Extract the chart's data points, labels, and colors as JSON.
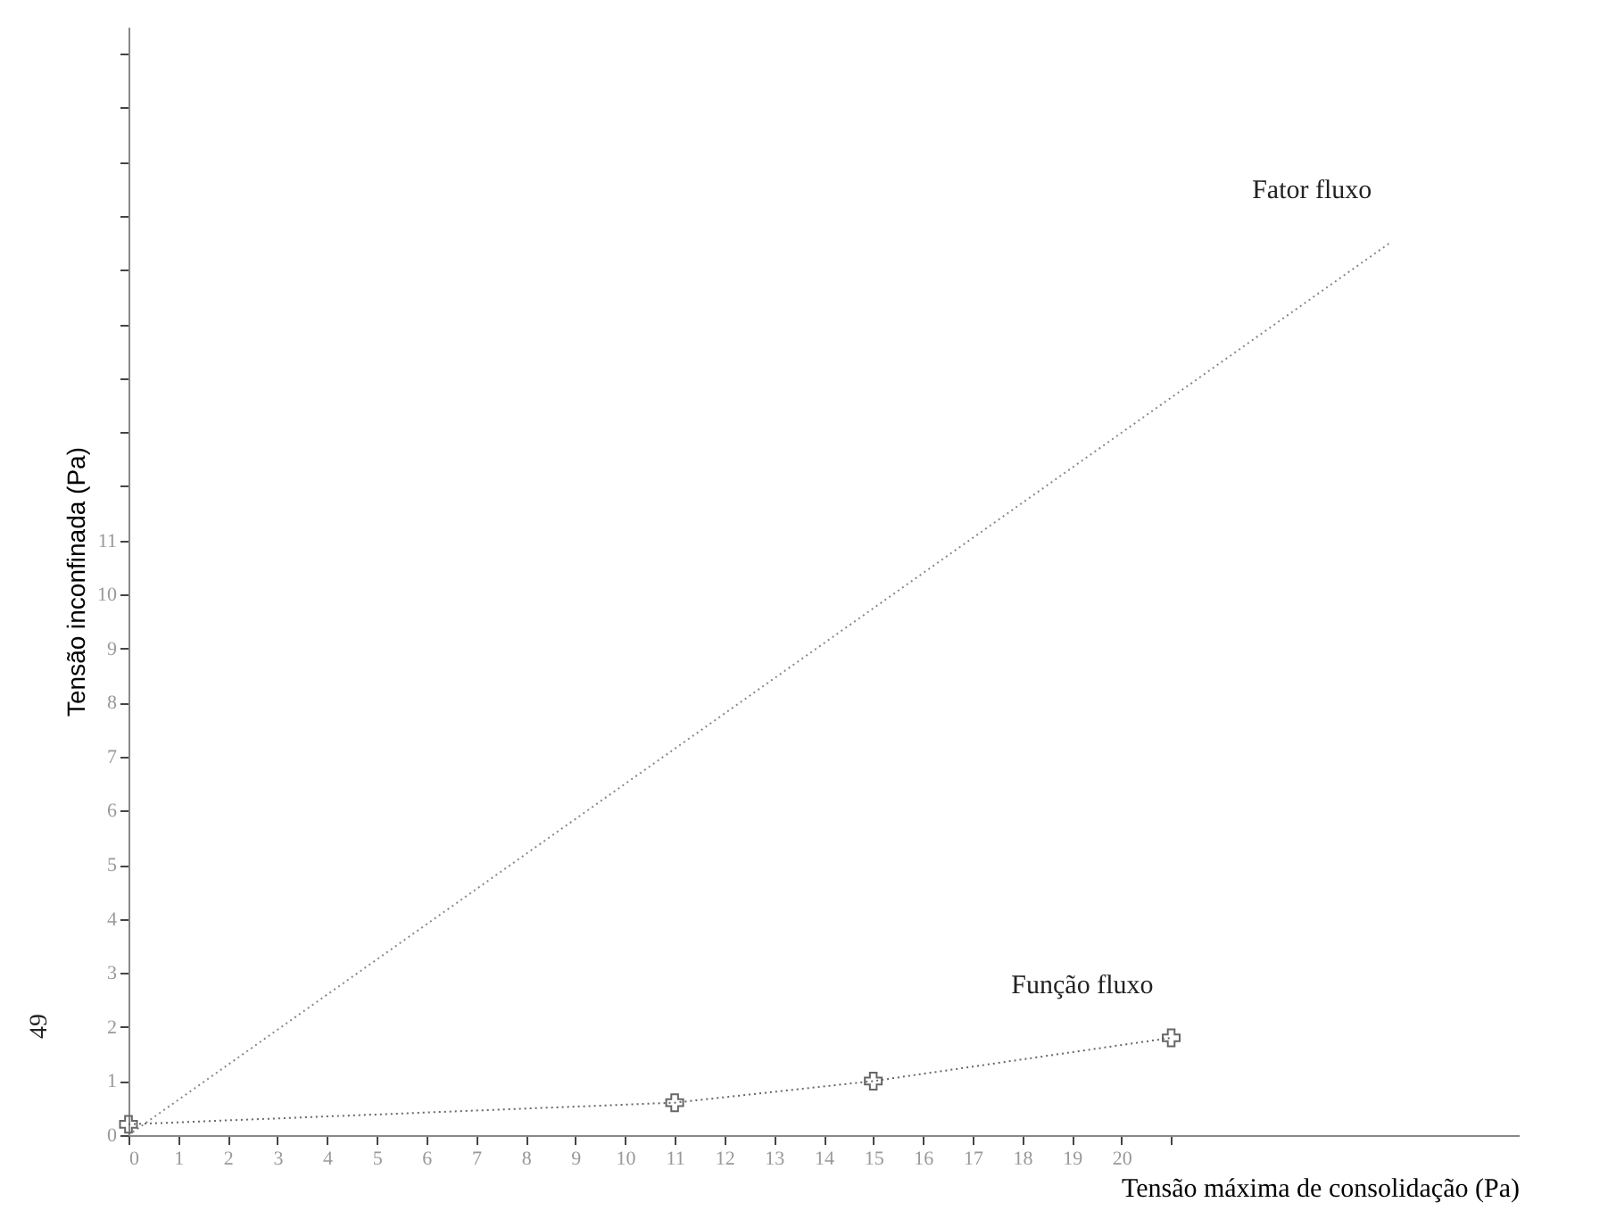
{
  "chart_data": {
    "type": "line",
    "xlabel": "Tensão máxima de consolidação (Pa)",
    "ylabel": "Tensão inconfinada (Pa)",
    "xlim": [
      0,
      28
    ],
    "ylim": [
      0,
      20.5
    ],
    "xticks": [
      0,
      1,
      2,
      3,
      4,
      5,
      6,
      7,
      8,
      9,
      10,
      11,
      12,
      13,
      14,
      15,
      16,
      17,
      18,
      19,
      20,
      {
        "value": 21,
        "label": null
      }
    ],
    "yticks": [
      0,
      1,
      2,
      3,
      4,
      5,
      6,
      7,
      8,
      9,
      10,
      11,
      {
        "value": 12,
        "label": null
      },
      {
        "value": 13,
        "label": null
      },
      {
        "value": 14,
        "label": null
      },
      {
        "value": 15,
        "label": null
      },
      {
        "value": 16,
        "label": null
      },
      {
        "value": 17,
        "label": null
      },
      {
        "value": 18,
        "label": null
      },
      {
        "value": 19,
        "label": null
      },
      {
        "value": 20,
        "label": null
      }
    ],
    "series": [
      {
        "name": "Fator fluxo",
        "color": "#888888",
        "x": [
          0,
          25.4
        ],
        "values": [
          0,
          16.5
        ],
        "marker": "none",
        "line_style": "dotted"
      },
      {
        "name": "Função fluxo",
        "color": "#666666",
        "x": [
          0,
          11,
          15,
          21
        ],
        "values": [
          0.2,
          0.6,
          1.0,
          1.8
        ],
        "marker": "cross",
        "line_style": "dotted"
      }
    ],
    "annotations": [
      "49"
    ],
    "grid": false,
    "legend": false
  }
}
